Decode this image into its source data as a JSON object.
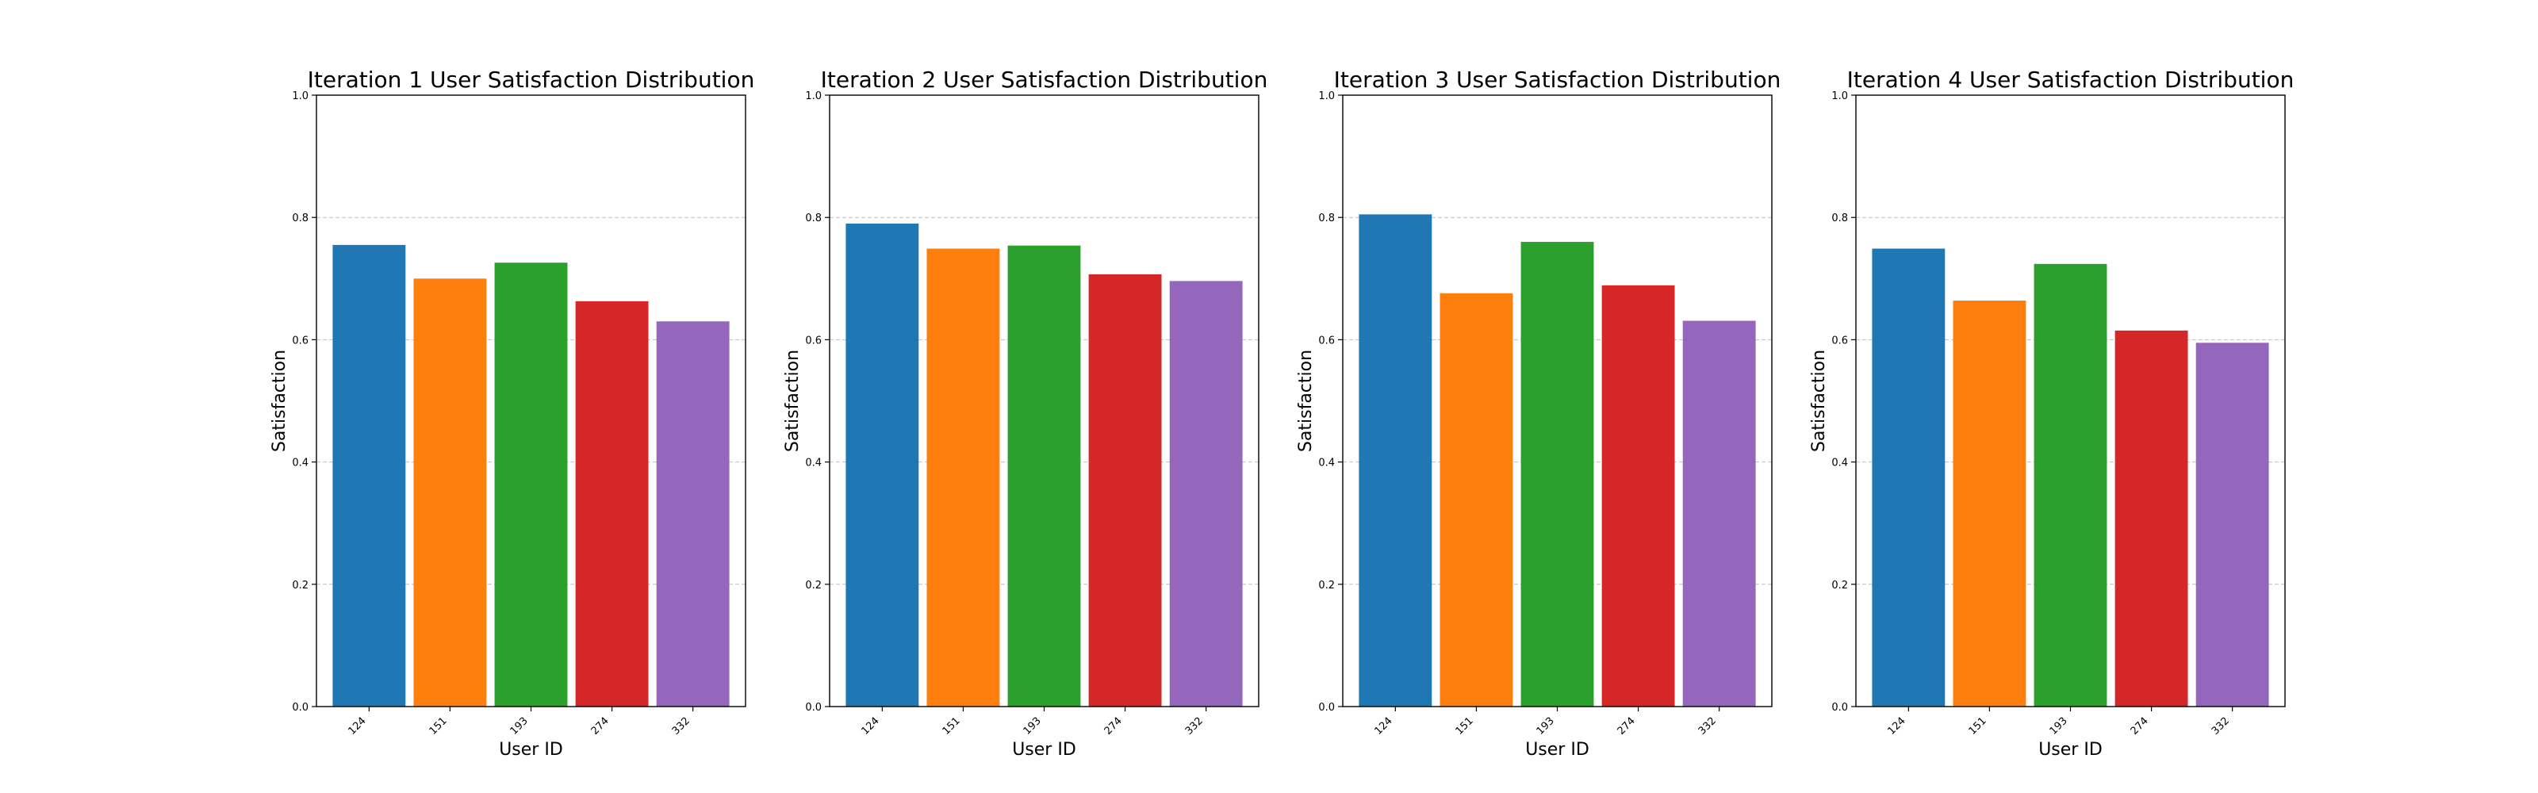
{
  "figure": {
    "xlabel": "User ID",
    "ylabel": "Satisfaction"
  },
  "chart_data": [
    {
      "type": "bar",
      "title": "Iteration 1 User Satisfaction Distribution",
      "xlabel": "User ID",
      "ylabel": "Satisfaction",
      "categories": [
        "124",
        "151",
        "193",
        "274",
        "332"
      ],
      "values": [
        0.755,
        0.7,
        0.726,
        0.663,
        0.63
      ],
      "colors": [
        "#1f77b4",
        "#ff7f0e",
        "#2ca02c",
        "#d62728",
        "#9467bd"
      ],
      "ylim": [
        0,
        1.0
      ],
      "yticks": [
        "0.0",
        "0.2",
        "0.4",
        "0.6",
        "0.8",
        "1.0"
      ],
      "grid": "y-dashed",
      "legend": "none"
    },
    {
      "type": "bar",
      "title": "Iteration 2 User Satisfaction Distribution",
      "xlabel": "User ID",
      "ylabel": "Satisfaction",
      "categories": [
        "124",
        "151",
        "193",
        "274",
        "332"
      ],
      "values": [
        0.79,
        0.749,
        0.754,
        0.707,
        0.696
      ],
      "colors": [
        "#1f77b4",
        "#ff7f0e",
        "#2ca02c",
        "#d62728",
        "#9467bd"
      ],
      "ylim": [
        0,
        1.0
      ],
      "yticks": [
        "0.0",
        "0.2",
        "0.4",
        "0.6",
        "0.8",
        "1.0"
      ],
      "grid": "y-dashed",
      "legend": "none"
    },
    {
      "type": "bar",
      "title": "Iteration 3 User Satisfaction Distribution",
      "xlabel": "User ID",
      "ylabel": "Satisfaction",
      "categories": [
        "124",
        "151",
        "193",
        "274",
        "332"
      ],
      "values": [
        0.805,
        0.676,
        0.76,
        0.689,
        0.631
      ],
      "colors": [
        "#1f77b4",
        "#ff7f0e",
        "#2ca02c",
        "#d62728",
        "#9467bd"
      ],
      "ylim": [
        0,
        1.0
      ],
      "yticks": [
        "0.0",
        "0.2",
        "0.4",
        "0.6",
        "0.8",
        "1.0"
      ],
      "grid": "y-dashed",
      "legend": "none"
    },
    {
      "type": "bar",
      "title": "Iteration 4 User Satisfaction Distribution",
      "xlabel": "User ID",
      "ylabel": "Satisfaction",
      "categories": [
        "124",
        "151",
        "193",
        "274",
        "332"
      ],
      "values": [
        0.749,
        0.664,
        0.724,
        0.615,
        0.595
      ],
      "colors": [
        "#1f77b4",
        "#ff7f0e",
        "#2ca02c",
        "#d62728",
        "#9467bd"
      ],
      "ylim": [
        0,
        1.0
      ],
      "yticks": [
        "0.0",
        "0.2",
        "0.4",
        "0.6",
        "0.8",
        "1.0"
      ],
      "grid": "y-dashed",
      "legend": "none"
    }
  ]
}
